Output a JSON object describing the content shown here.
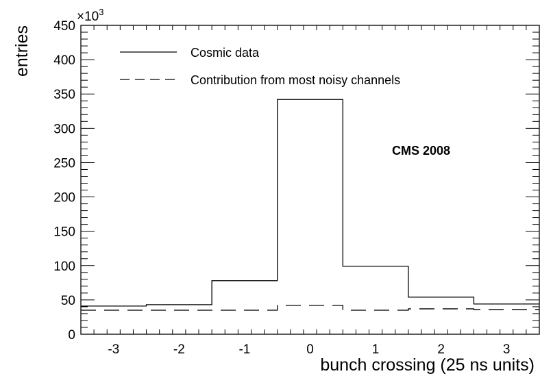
{
  "chart_data": {
    "type": "histogram",
    "xlabel": "bunch crossing (25 ns units)",
    "ylabel": "entries",
    "y_multiplier": "×10",
    "y_multiplier_exp": "3",
    "xlim": [
      -3.5,
      3.5
    ],
    "ylim": [
      0,
      450
    ],
    "x_ticks": [
      "-3",
      "-2",
      "-1",
      "0",
      "1",
      "2",
      "3"
    ],
    "y_ticks": [
      "0",
      "50",
      "100",
      "150",
      "200",
      "250",
      "300",
      "350",
      "400",
      "450"
    ],
    "bin_edges": [
      -3.5,
      -2.5,
      -1.5,
      -0.5,
      0.5,
      1.5,
      2.5,
      3.5
    ],
    "series": [
      {
        "name": "Cosmic data",
        "style": "solid",
        "values": [
          41,
          43,
          78,
          342,
          99,
          54,
          44
        ]
      },
      {
        "name": "Contribution from most noisy channels",
        "style": "dashed",
        "values": [
          35,
          35,
          35,
          42,
          35,
          37,
          36
        ]
      }
    ],
    "annotation": "CMS 2008",
    "legend_position": "top-left",
    "grid": false
  }
}
